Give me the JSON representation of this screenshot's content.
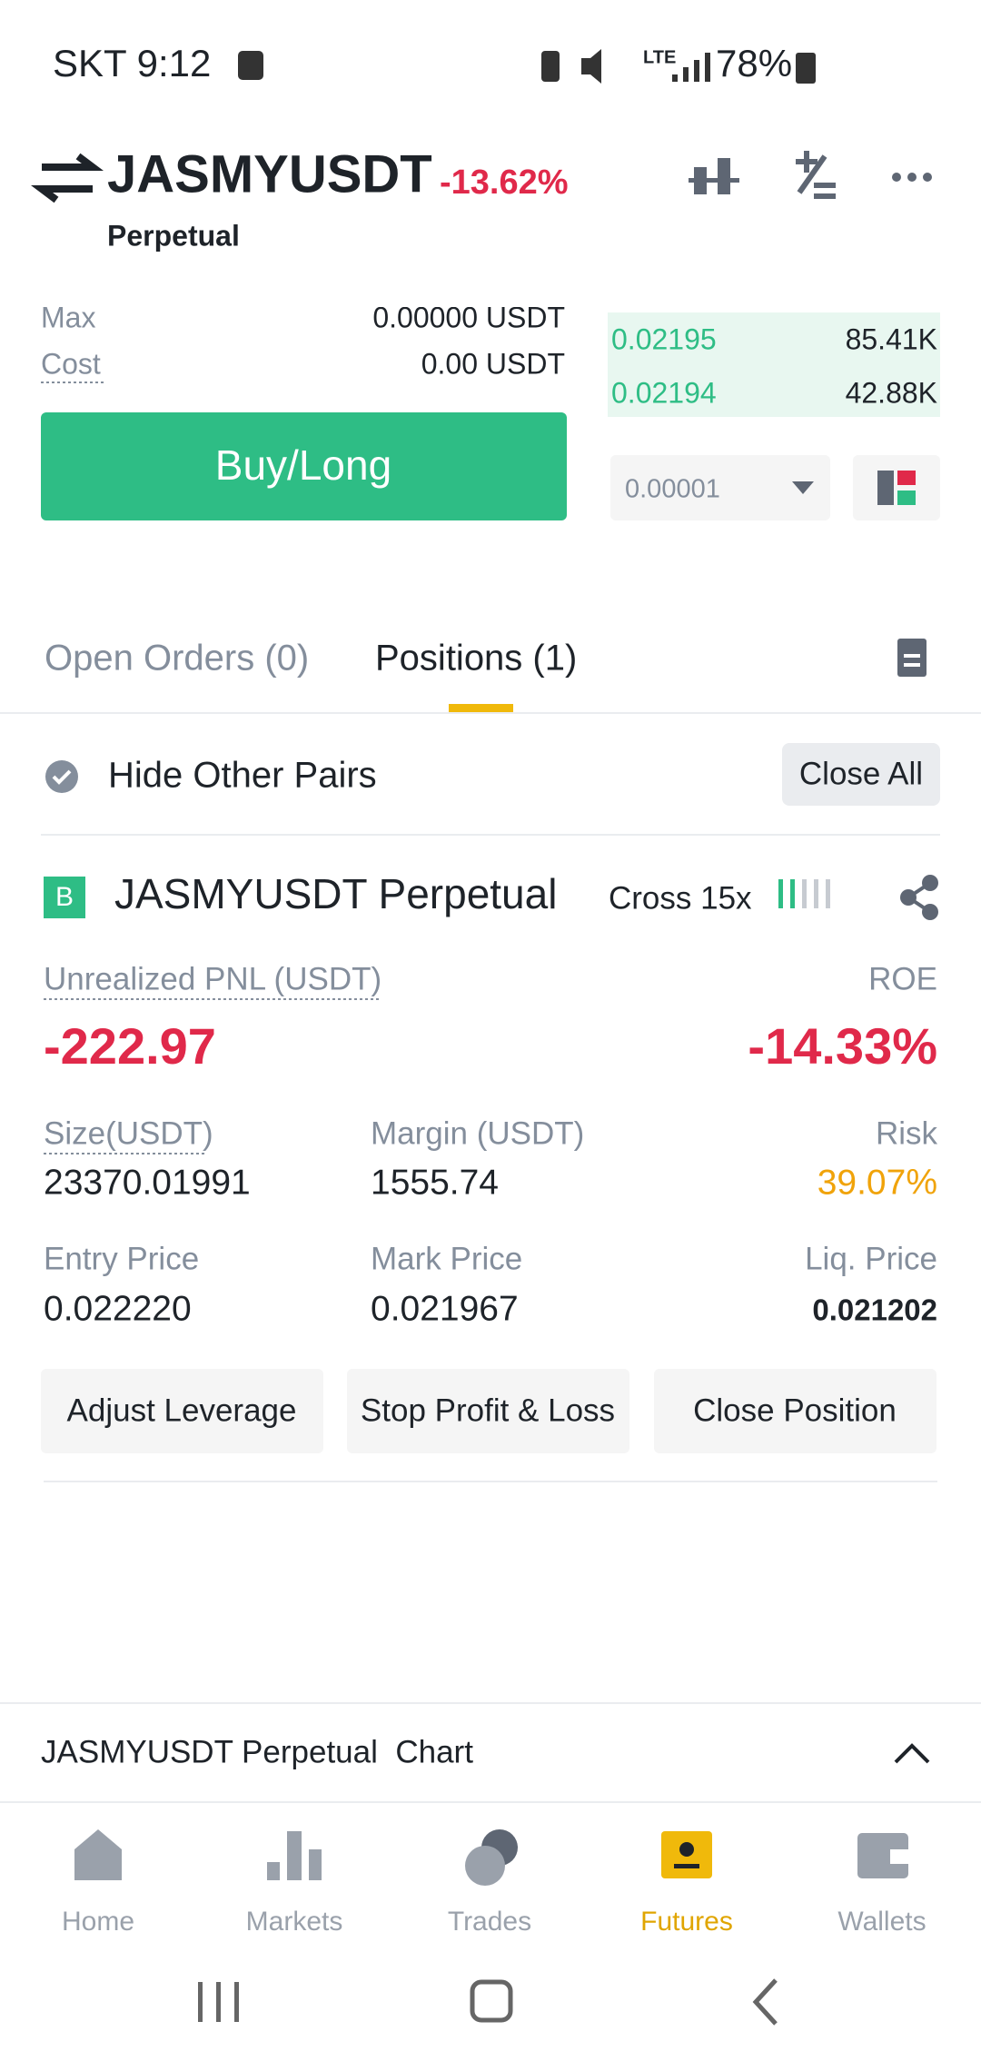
{
  "status_bar": {
    "carrier_time": "SKT 9:12",
    "network": "LTE",
    "battery": "78%"
  },
  "header": {
    "symbol": "JASMYUSDT",
    "change": "-13.62%",
    "contract": "Perpetual"
  },
  "order_form": {
    "max_label": "Max",
    "max_value": "0.00000 USDT",
    "cost_label": "Cost",
    "cost_value": "0.00 USDT",
    "buy_button": "Buy/Long"
  },
  "order_book": {
    "rows": [
      [
        "0.02195",
        "85.41K"
      ],
      [
        "0.02194",
        "42.88K"
      ]
    ],
    "precision": "0.00001"
  },
  "tabs": {
    "open_orders": "Open Orders (0)",
    "positions": "Positions (1)"
  },
  "filter": {
    "hide_other_pairs": "Hide Other Pairs",
    "close_all": "Close All"
  },
  "position": {
    "side_badge": "B",
    "name": "JASMYUSDT Perpetual",
    "margin_mode": "Cross 15x",
    "pnl_label": "Unrealized PNL (USDT)",
    "pnl_value": "-222.97",
    "roe_label": "ROE",
    "roe_value": "-14.33%",
    "fields": [
      [
        {
          "label": "Size(USDT)",
          "value": "23370.01991"
        },
        {
          "label": "Margin (USDT)",
          "value": "1555.74"
        },
        {
          "label": "Risk",
          "value": "39.07%"
        }
      ],
      [
        {
          "label": "Entry Price",
          "value": "0.022220"
        },
        {
          "label": "Mark Price",
          "value": "0.021967"
        },
        {
          "label": "Liq. Price",
          "value": "0.021202"
        }
      ]
    ],
    "buttons": [
      "Adjust Leverage",
      "Stop Profit & Loss",
      "Close Position"
    ]
  },
  "chart_bar": {
    "label": "JASMYUSDT Perpetual  Chart"
  },
  "nav": [
    "Home",
    "Markets",
    "Trades",
    "Futures",
    "Wallets"
  ]
}
